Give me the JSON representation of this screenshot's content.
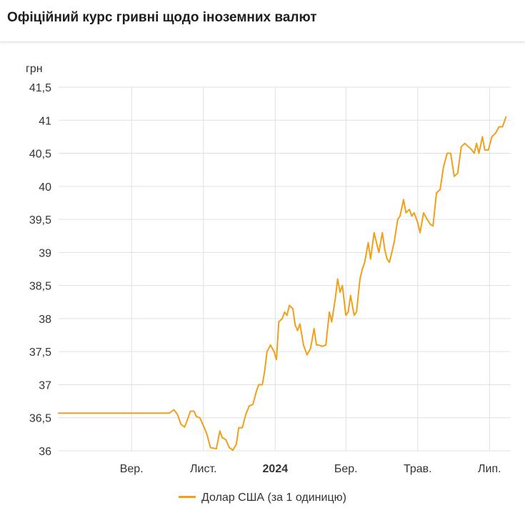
{
  "page": {
    "title": "Офіційний курс гривні щодо іноземних валют"
  },
  "chart_data": {
    "type": "line",
    "ylabel": "грн",
    "ylim": [
      36,
      41.5
    ],
    "yticks": [
      "36",
      "36,5",
      "37",
      "37,5",
      "38",
      "38,5",
      "39",
      "39,5",
      "40",
      "40,5",
      "41",
      "41,5"
    ],
    "xlim": [
      "2023-07-01",
      "2024-07-19"
    ],
    "xticks": [
      {
        "date": "2023-09-01",
        "label": "Вер.",
        "bold": false
      },
      {
        "date": "2023-11-01",
        "label": "Лист.",
        "bold": false
      },
      {
        "date": "2024-01-01",
        "label": "2024",
        "bold": true
      },
      {
        "date": "2024-03-01",
        "label": "Бер.",
        "bold": false
      },
      {
        "date": "2024-05-01",
        "label": "Трав.",
        "bold": false
      },
      {
        "date": "2024-07-01",
        "label": "Лип.",
        "bold": false
      }
    ],
    "grid": true,
    "legend": "bottom",
    "color": "#f0a019",
    "series": [
      {
        "name": "Долар США (за 1 одиницю)",
        "points": [
          [
            "2023-07-01",
            36.57
          ],
          [
            "2023-08-01",
            36.57
          ],
          [
            "2023-09-01",
            36.57
          ],
          [
            "2023-10-03",
            36.57
          ],
          [
            "2023-10-07",
            36.62
          ],
          [
            "2023-10-10",
            36.55
          ],
          [
            "2023-10-13",
            36.4
          ],
          [
            "2023-10-16",
            36.36
          ],
          [
            "2023-10-18",
            36.45
          ],
          [
            "2023-10-21",
            36.6
          ],
          [
            "2023-10-24",
            36.6
          ],
          [
            "2023-10-26",
            36.52
          ],
          [
            "2023-10-29",
            36.5
          ],
          [
            "2023-11-01",
            36.38
          ],
          [
            "2023-11-04",
            36.25
          ],
          [
            "2023-11-07",
            36.05
          ],
          [
            "2023-11-12",
            36.03
          ],
          [
            "2023-11-15",
            36.3
          ],
          [
            "2023-11-17",
            36.2
          ],
          [
            "2023-11-20",
            36.17
          ],
          [
            "2023-11-23",
            36.05
          ],
          [
            "2023-11-26",
            36.01
          ],
          [
            "2023-11-29",
            36.1
          ],
          [
            "2023-12-01",
            36.35
          ],
          [
            "2023-12-04",
            36.35
          ],
          [
            "2023-12-07",
            36.55
          ],
          [
            "2023-12-10",
            36.68
          ],
          [
            "2023-12-13",
            36.7
          ],
          [
            "2023-12-16",
            36.9
          ],
          [
            "2023-12-18",
            37.0
          ],
          [
            "2023-12-21",
            37.0
          ],
          [
            "2023-12-23",
            37.2
          ],
          [
            "2023-12-25",
            37.5
          ],
          [
            "2023-12-28",
            37.6
          ],
          [
            "2023-12-31",
            37.5
          ],
          [
            "2024-01-02",
            37.38
          ],
          [
            "2024-01-04",
            37.95
          ],
          [
            "2024-01-07",
            38.0
          ],
          [
            "2024-01-09",
            38.1
          ],
          [
            "2024-01-11",
            38.05
          ],
          [
            "2024-01-13",
            38.2
          ],
          [
            "2024-01-16",
            38.15
          ],
          [
            "2024-01-18",
            37.9
          ],
          [
            "2024-01-20",
            37.82
          ],
          [
            "2024-01-22",
            37.92
          ],
          [
            "2024-01-25",
            37.6
          ],
          [
            "2024-01-28",
            37.45
          ],
          [
            "2024-01-31",
            37.55
          ],
          [
            "2024-02-03",
            37.85
          ],
          [
            "2024-02-05",
            37.6
          ],
          [
            "2024-02-07",
            37.6
          ],
          [
            "2024-02-10",
            37.58
          ],
          [
            "2024-02-13",
            37.6
          ],
          [
            "2024-02-16",
            38.1
          ],
          [
            "2024-02-18",
            37.95
          ],
          [
            "2024-02-21",
            38.3
          ],
          [
            "2024-02-23",
            38.6
          ],
          [
            "2024-02-25",
            38.4
          ],
          [
            "2024-02-27",
            38.5
          ],
          [
            "2024-03-01",
            38.05
          ],
          [
            "2024-03-03",
            38.1
          ],
          [
            "2024-03-05",
            38.35
          ],
          [
            "2024-03-08",
            38.05
          ],
          [
            "2024-03-10",
            38.1
          ],
          [
            "2024-03-13",
            38.6
          ],
          [
            "2024-03-15",
            38.75
          ],
          [
            "2024-03-17",
            38.85
          ],
          [
            "2024-03-20",
            39.15
          ],
          [
            "2024-03-22",
            38.9
          ],
          [
            "2024-03-25",
            39.3
          ],
          [
            "2024-03-27",
            39.15
          ],
          [
            "2024-03-29",
            39.0
          ],
          [
            "2024-04-01",
            39.3
          ],
          [
            "2024-04-03",
            39.05
          ],
          [
            "2024-04-05",
            38.9
          ],
          [
            "2024-04-07",
            38.85
          ],
          [
            "2024-04-09",
            39.0
          ],
          [
            "2024-04-11",
            39.15
          ],
          [
            "2024-04-14",
            39.5
          ],
          [
            "2024-04-16",
            39.55
          ],
          [
            "2024-04-19",
            39.8
          ],
          [
            "2024-04-21",
            39.6
          ],
          [
            "2024-04-24",
            39.65
          ],
          [
            "2024-04-26",
            39.55
          ],
          [
            "2024-04-28",
            39.6
          ],
          [
            "2024-05-01",
            39.45
          ],
          [
            "2024-05-03",
            39.3
          ],
          [
            "2024-05-06",
            39.6
          ],
          [
            "2024-05-09",
            39.5
          ],
          [
            "2024-05-12",
            39.42
          ],
          [
            "2024-05-14",
            39.4
          ],
          [
            "2024-05-17",
            39.9
          ],
          [
            "2024-05-20",
            39.95
          ],
          [
            "2024-05-23",
            40.3
          ],
          [
            "2024-05-26",
            40.5
          ],
          [
            "2024-05-29",
            40.5
          ],
          [
            "2024-06-01",
            40.15
          ],
          [
            "2024-06-04",
            40.2
          ],
          [
            "2024-06-07",
            40.6
          ],
          [
            "2024-06-10",
            40.65
          ],
          [
            "2024-06-13",
            40.6
          ],
          [
            "2024-06-16",
            40.55
          ],
          [
            "2024-06-18",
            40.5
          ],
          [
            "2024-06-20",
            40.65
          ],
          [
            "2024-06-22",
            40.5
          ],
          [
            "2024-06-25",
            40.75
          ],
          [
            "2024-06-27",
            40.55
          ],
          [
            "2024-06-30",
            40.55
          ],
          [
            "2024-07-03",
            40.75
          ],
          [
            "2024-07-06",
            40.8
          ],
          [
            "2024-07-09",
            40.9
          ],
          [
            "2024-07-12",
            40.9
          ],
          [
            "2024-07-15",
            41.05
          ]
        ]
      }
    ]
  }
}
